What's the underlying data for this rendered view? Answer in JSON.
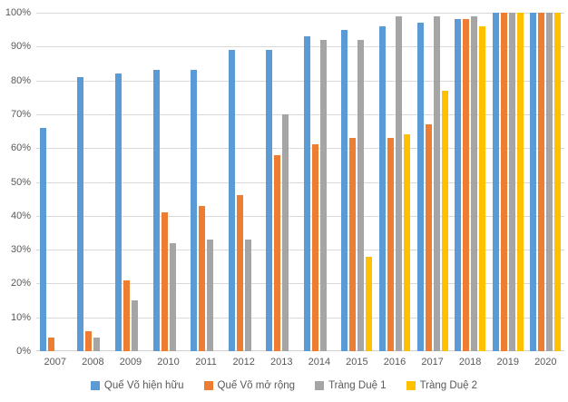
{
  "chart_data": {
    "type": "bar",
    "title": "",
    "xlabel": "",
    "ylabel": "",
    "categories": [
      "2007",
      "2008",
      "2009",
      "2010",
      "2011",
      "2012",
      "2013",
      "2014",
      "2015",
      "2016",
      "2017",
      "2018",
      "2019",
      "2020"
    ],
    "series": [
      {
        "name": "Quế Võ hiện hữu",
        "color": "#5B9BD5",
        "values": [
          66,
          81,
          82,
          83,
          83,
          89,
          89,
          93,
          95,
          96,
          97,
          98,
          100,
          100
        ]
      },
      {
        "name": "Quế Võ mở rộng",
        "color": "#ED7D31",
        "values": [
          4,
          6,
          21,
          41,
          43,
          46,
          58,
          61,
          63,
          63,
          67,
          98,
          100,
          100
        ]
      },
      {
        "name": "Tràng Duệ 1",
        "color": "#A5A5A5",
        "values": [
          0,
          4,
          15,
          32,
          33,
          33,
          70,
          92,
          92,
          99,
          99,
          99,
          100,
          100
        ]
      },
      {
        "name": "Tràng Duệ 2",
        "color": "#FFC000",
        "values": [
          0,
          0,
          0,
          0,
          0,
          0,
          0,
          0,
          28,
          64,
          77,
          96,
          100,
          100
        ]
      }
    ],
    "y_axis": {
      "min": 0,
      "max": 100,
      "step": 10,
      "unit": "%"
    },
    "y_ticks": [
      "0%",
      "10%",
      "20%",
      "30%",
      "40%",
      "50%",
      "60%",
      "70%",
      "80%",
      "90%",
      "100%"
    ],
    "grid": true,
    "legend_position": "bottom",
    "colors": {
      "gridline": "#D9D9D9",
      "axis_text": "#595959"
    }
  }
}
